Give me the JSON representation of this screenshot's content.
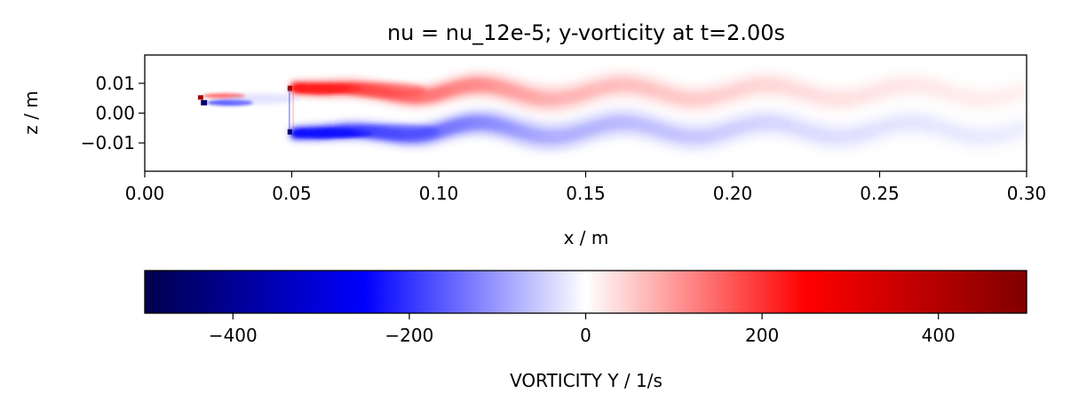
{
  "chart_data": {
    "type": "heatmap",
    "title": "nu = nu_12e-5; y-vorticity at t=2.00s",
    "xlabel": "x / m",
    "ylabel": "z / m",
    "xlim": [
      0.0,
      0.3
    ],
    "ylim": [
      -0.0195,
      0.0195
    ],
    "x_ticks": [
      0.0,
      0.05,
      0.1,
      0.15,
      0.2,
      0.25,
      0.3
    ],
    "x_tick_labels": [
      "0.00",
      "0.05",
      "0.10",
      "0.15",
      "0.20",
      "0.25",
      "0.30"
    ],
    "y_ticks": [
      0.01,
      0.0,
      -0.01
    ],
    "y_tick_labels": [
      "0.01",
      "0.00",
      "−0.01"
    ],
    "colormap": "seismic",
    "colormap_stops": [
      "#00004c",
      "#0000ff",
      "#ffffff",
      "#ff0000",
      "#800000"
    ],
    "clim": [
      -500,
      500
    ],
    "colorbar": {
      "label": "VORTICITY Y / 1/s",
      "ticks": [
        -400,
        -200,
        0,
        200,
        400
      ],
      "tick_labels": [
        "−400",
        "−200",
        "0",
        "200",
        "400"
      ],
      "orientation": "horizontal"
    },
    "features": [
      {
        "name": "first obstacle",
        "x": 0.02,
        "z_top": 0.005,
        "z_bottom": 0.004
      },
      {
        "name": "second obstacle",
        "x": 0.05,
        "z_top": 0.0075,
        "z_bottom": -0.0065
      },
      {
        "name": "upper shear layer",
        "sign": "positive",
        "peak": 500,
        "x_range": [
          0.05,
          0.3
        ]
      },
      {
        "name": "lower shear layer",
        "sign": "negative",
        "peak": -500,
        "x_range": [
          0.05,
          0.3
        ]
      }
    ]
  }
}
